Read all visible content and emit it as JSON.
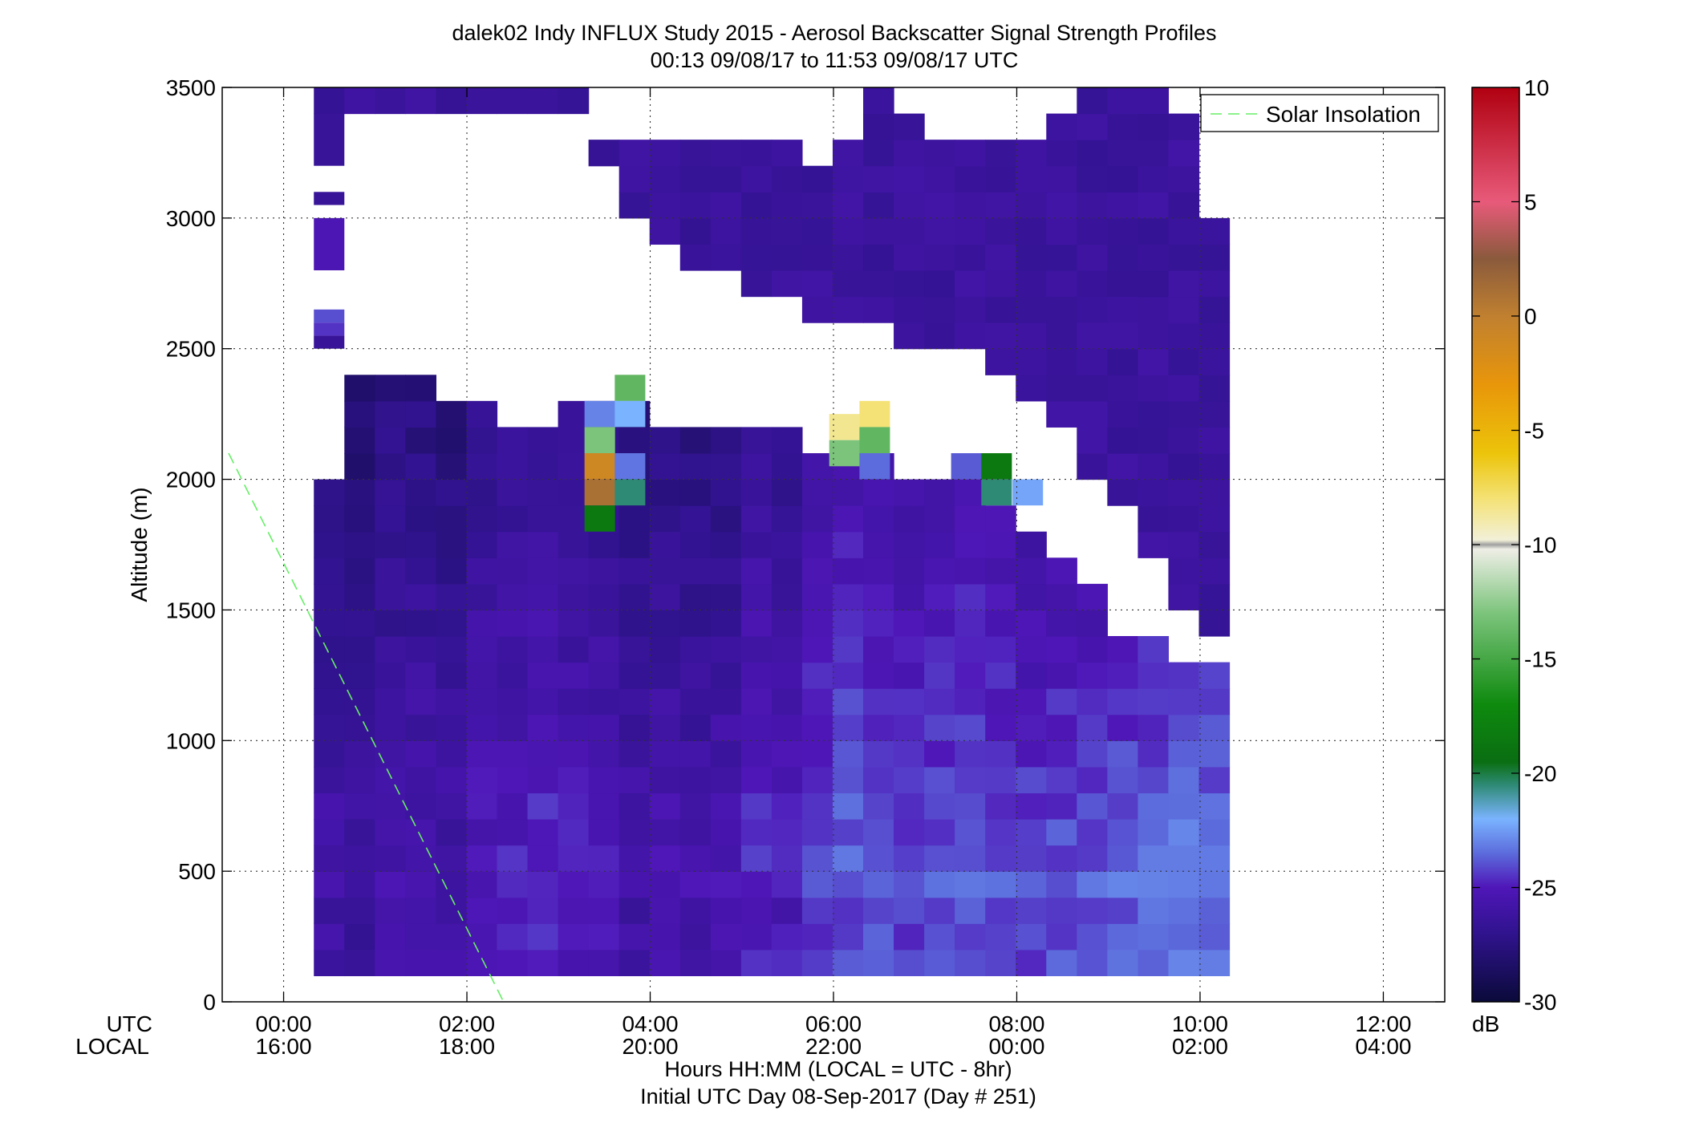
{
  "chart_data": {
    "type": "heatmap",
    "title": "dalek02 Indy INFLUX Study 2015 - Aerosol Backscatter Signal Strength Profiles",
    "subtitle": "00:13 09/08/17 to 11:53 09/08/17  UTC",
    "ylabel": "Altitude (m)",
    "xlabel": "Hours HH:MM  (LOCAL = UTC - 8hr)",
    "xlabel2": "Initial UTC Day 08-Sep-2017 (Day # 251)",
    "x_axis_names": {
      "utc": "UTC",
      "local": "LOCAL"
    },
    "ylim": [
      0,
      3500
    ],
    "xlim_hours": [
      -0.67,
      12.67
    ],
    "y_ticks": [
      0,
      500,
      1000,
      1500,
      2000,
      2500,
      3000,
      3500
    ],
    "x_ticks_hours": [
      0,
      2,
      4,
      6,
      8,
      10,
      12
    ],
    "x_tick_labels_utc": [
      "00:00",
      "02:00",
      "04:00",
      "06:00",
      "08:00",
      "10:00",
      "12:00"
    ],
    "x_tick_labels_local": [
      "16:00",
      "18:00",
      "20:00",
      "22:00",
      "00:00",
      "02:00",
      "04:00"
    ],
    "grid": true,
    "legend": {
      "position": "top-right",
      "entries": [
        "Solar Insolation"
      ]
    },
    "solar_insolation_line": {
      "color": "#66ee66",
      "style": "dashed",
      "points_hours_alt": [
        [
          -0.6,
          2100
        ],
        [
          2.4,
          0
        ]
      ]
    },
    "colorbar": {
      "unit": "dB",
      "range": [
        -30,
        10
      ],
      "ticks": [
        10,
        5,
        0,
        -5,
        -10,
        -15,
        -20,
        -25,
        -30
      ],
      "stops": [
        {
          "v": -30,
          "c": "#0a0a3a"
        },
        {
          "v": -27,
          "c": "#30138e"
        },
        {
          "v": -25,
          "c": "#4f16b8"
        },
        {
          "v": -23.5,
          "c": "#5c6cdc"
        },
        {
          "v": -22,
          "c": "#7ab3ff"
        },
        {
          "v": -20.5,
          "c": "#2e8a74"
        },
        {
          "v": -19.5,
          "c": "#0a6e12"
        },
        {
          "v": -17,
          "c": "#0e8a0e"
        },
        {
          "v": -13,
          "c": "#7cc47c"
        },
        {
          "v": -10.2,
          "c": "#eeeee6"
        },
        {
          "v": -10,
          "c": "#a0a0a0"
        },
        {
          "v": -9.8,
          "c": "#f2f0d8"
        },
        {
          "v": -8,
          "c": "#f4e276"
        },
        {
          "v": -6,
          "c": "#ecc40a"
        },
        {
          "v": -3,
          "c": "#e8960a"
        },
        {
          "v": 0,
          "c": "#c08030"
        },
        {
          "v": 2.5,
          "c": "#8a5a3c"
        },
        {
          "v": 5,
          "c": "#e85a7a"
        },
        {
          "v": 10,
          "c": "#b00010"
        }
      ]
    },
    "grid_start_hour": 0.33,
    "grid_step_hours": 0.333,
    "grid_column_count": 30,
    "altitude_bin_m": 100,
    "altitude_first_bin_center_m": 150,
    "altitude_bin_count": 34,
    "profile_columns": [
      {
        "top": 2050,
        "tmin": 3400,
        "tmax": 3600,
        "base": -25.0
      },
      {
        "top": 2400,
        "tmin": 3350,
        "tmax": 3550,
        "base": -25.5
      },
      {
        "top": 2400,
        "tmin": 3350,
        "tmax": 3550,
        "base": -25.0
      },
      {
        "top": 2400,
        "tmin": 3350,
        "tmax": 3550,
        "base": -25.0
      },
      {
        "top": 2300,
        "tmin": 3350,
        "tmax": 3550,
        "base": -25.2
      },
      {
        "top": 2300,
        "tmin": 3350,
        "tmax": 3550,
        "base": -24.5
      },
      {
        "top": 2200,
        "tmin": 3350,
        "tmax": 3550,
        "base": -24.3
      },
      {
        "top": 2250,
        "tmin": 3350,
        "tmax": 3550,
        "base": -24.0
      },
      {
        "top": 2350,
        "tmin": 3350,
        "tmax": 3600,
        "base": -24.4
      },
      {
        "top": 2300,
        "tmin": 3150,
        "tmax": 3350,
        "base": -24.5
      },
      {
        "top": 2300,
        "tmin": 2950,
        "tmax": 3350,
        "base": -25.0
      },
      {
        "top": 2250,
        "tmin": 2900,
        "tmax": 3300,
        "base": -24.8
      },
      {
        "top": 2200,
        "tmin": 2800,
        "tmax": 3300,
        "base": -25.0
      },
      {
        "top": 2200,
        "tmin": 2750,
        "tmax": 3300,
        "base": -24.8
      },
      {
        "top": 2200,
        "tmin": 2700,
        "tmax": 3300,
        "base": -24.0
      },
      {
        "top": 2200,
        "tmin": 2650,
        "tmax": 3300,
        "base": -24.3
      },
      {
        "top": 2150,
        "tmin": 2600,
        "tmax": 3250,
        "base": -23.5
      },
      {
        "top": 2100,
        "tmin": 2550,
        "tmax": 3300,
        "base": -23.0
      },
      {
        "top": 2100,
        "tmin": 2550,
        "tmax": 3500,
        "base": -23.2
      },
      {
        "top": 2050,
        "tmin": 2500,
        "tmax": 3400,
        "base": -23.5
      },
      {
        "top": 2050,
        "tmin": 2500,
        "tmax": 3350,
        "base": -23.3
      },
      {
        "top": 2050,
        "tmin": 2450,
        "tmax": 3300,
        "base": -23.0
      },
      {
        "top": 1950,
        "tmin": 2350,
        "tmax": 3300,
        "base": -23.2
      },
      {
        "top": 1850,
        "tmin": 2250,
        "tmax": 3300,
        "base": -23.4
      },
      {
        "top": 1750,
        "tmin": 2150,
        "tmax": 3400,
        "base": -23.2
      },
      {
        "top": 1600,
        "tmin": 2000,
        "tmax": 3550,
        "base": -23.0
      },
      {
        "top": 1450,
        "tmin": 1900,
        "tmax": 3550,
        "base": -22.6
      },
      {
        "top": 1450,
        "tmin": 1700,
        "tmax": 3500,
        "base": -22.4
      },
      {
        "top": 1350,
        "tmin": 1450,
        "tmax": 3400,
        "base": -22.0
      },
      {
        "top": 1300,
        "tmin": 1400,
        "tmax": 3000,
        "base": -22.2
      }
    ],
    "sparse_column": {
      "column_index": 0,
      "segments": [
        {
          "bottom": 3200,
          "top": 3400,
          "value": -26.5
        },
        {
          "bottom": 3050,
          "top": 3100,
          "value": -26.5
        },
        {
          "bottom": 2800,
          "top": 3000,
          "value": -25.2
        },
        {
          "bottom": 2500,
          "top": 2550,
          "value": -26.5
        },
        {
          "bottom": 2550,
          "top": 2600,
          "value": -24.5
        },
        {
          "bottom": 2600,
          "top": 2650,
          "value": -24.0
        }
      ]
    },
    "highlight_cells": [
      {
        "hour": 3.45,
        "alt": 2250,
        "value": -23.0
      },
      {
        "hour": 3.45,
        "alt": 2150,
        "value": -13.0
      },
      {
        "hour": 3.45,
        "alt": 2050,
        "value": -1.0
      },
      {
        "hour": 3.45,
        "alt": 1950,
        "value": 1.0
      },
      {
        "hour": 3.45,
        "alt": 1850,
        "value": -18.5
      },
      {
        "hour": 3.78,
        "alt": 2350,
        "value": -14.0
      },
      {
        "hour": 3.78,
        "alt": 2250,
        "value": -22.0
      },
      {
        "hour": 3.78,
        "alt": 2050,
        "value": -23.3
      },
      {
        "hour": 3.78,
        "alt": 1950,
        "value": -20.5
      },
      {
        "hour": 6.12,
        "alt": 2200,
        "value": -8.5
      },
      {
        "hour": 6.12,
        "alt": 2100,
        "value": -13.0
      },
      {
        "hour": 6.45,
        "alt": 2250,
        "value": -8.0
      },
      {
        "hour": 6.45,
        "alt": 2150,
        "value": -14.0
      },
      {
        "hour": 6.45,
        "alt": 2050,
        "value": -23.5
      },
      {
        "hour": 7.45,
        "alt": 2050,
        "value": -23.8
      },
      {
        "hour": 7.78,
        "alt": 2050,
        "value": -18.5
      },
      {
        "hour": 7.78,
        "alt": 1950,
        "value": -20.5
      },
      {
        "hour": 8.12,
        "alt": 1950,
        "value": -22.3
      }
    ]
  }
}
